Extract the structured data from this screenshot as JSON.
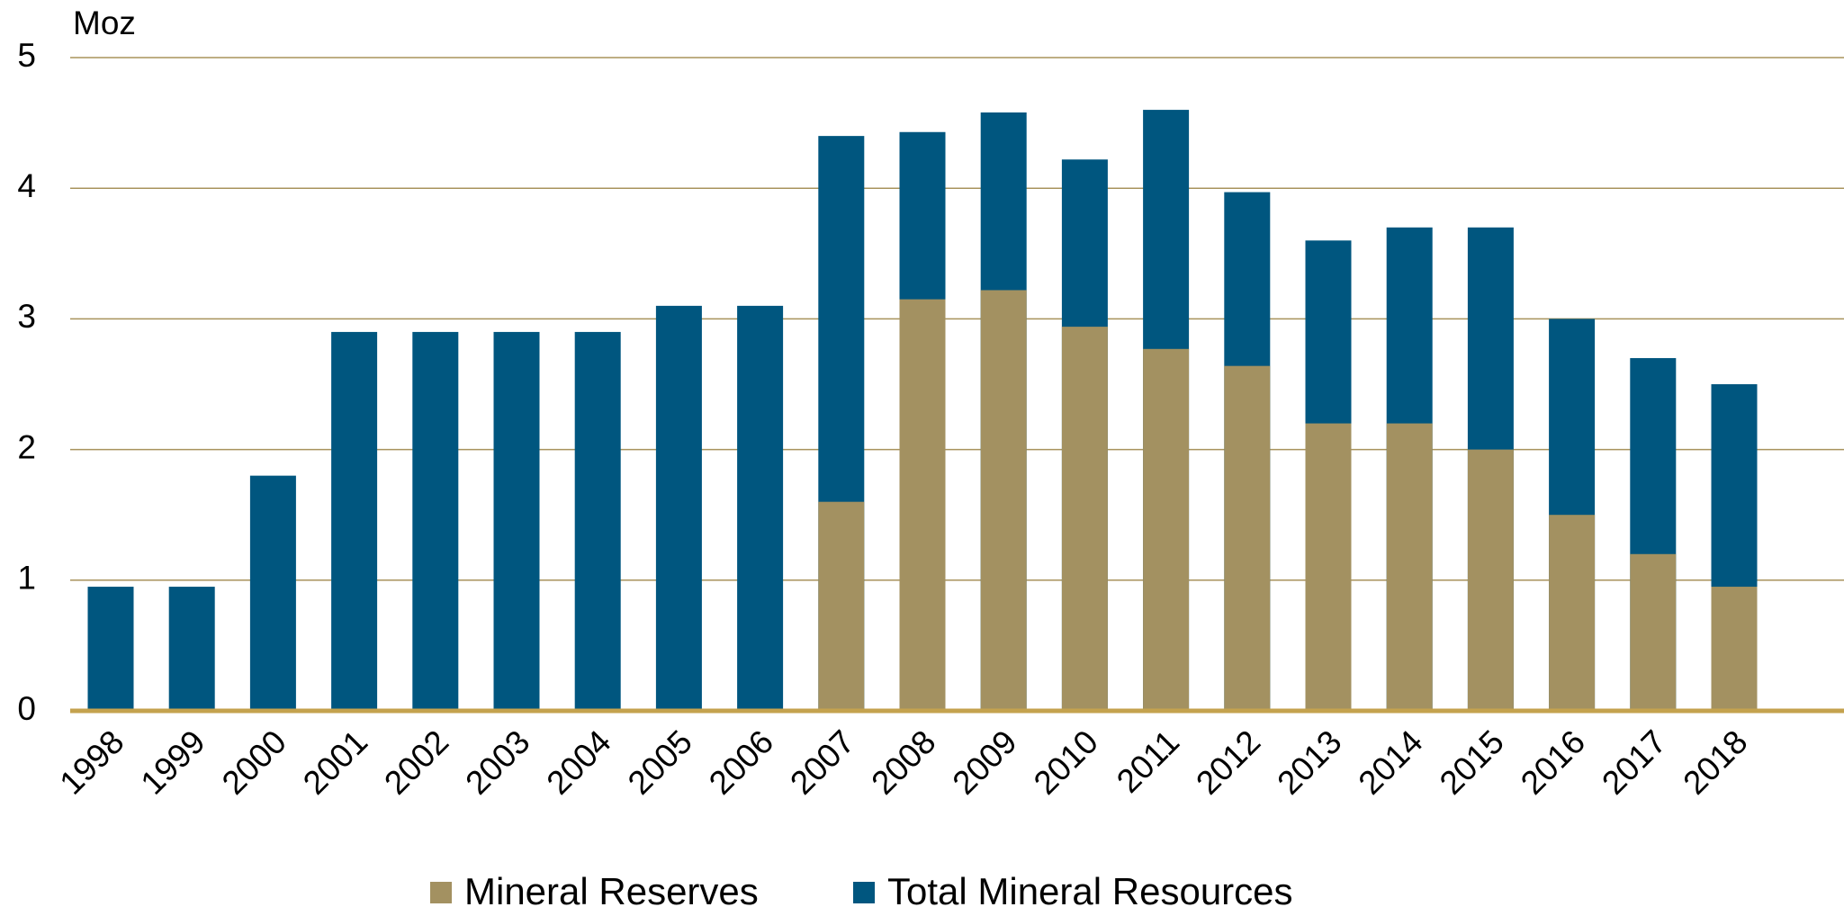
{
  "chart_data": {
    "type": "bar",
    "bar_mode": "overlap",
    "y_axis_label": "Moz",
    "categories": [
      "1998",
      "1999",
      "2000",
      "2001",
      "2002",
      "2003",
      "2004",
      "2005",
      "2006",
      "2007",
      "2008",
      "2009",
      "2010",
      "2011",
      "2012",
      "2013",
      "2014",
      "2015",
      "2016",
      "2017",
      "2018"
    ],
    "series": [
      {
        "name": "Mineral Reserves",
        "color": "#a39161",
        "values": [
          null,
          null,
          null,
          null,
          null,
          null,
          null,
          null,
          null,
          1.6,
          3.15,
          3.22,
          2.94,
          2.77,
          2.64,
          2.2,
          2.2,
          2.0,
          1.5,
          1.2,
          0.95
        ]
      },
      {
        "name": "Total Mineral Resources",
        "color": "#00567f",
        "values": [
          0.95,
          0.95,
          1.8,
          2.9,
          2.9,
          2.9,
          2.9,
          3.1,
          3.1,
          4.4,
          4.43,
          4.58,
          4.22,
          4.6,
          3.97,
          3.6,
          3.7,
          3.7,
          3.0,
          2.7,
          2.5
        ]
      }
    ],
    "ylim": [
      0,
      5
    ],
    "yticks": [
      0,
      1,
      2,
      3,
      4,
      5
    ],
    "grid": true,
    "legend": "bottom"
  }
}
